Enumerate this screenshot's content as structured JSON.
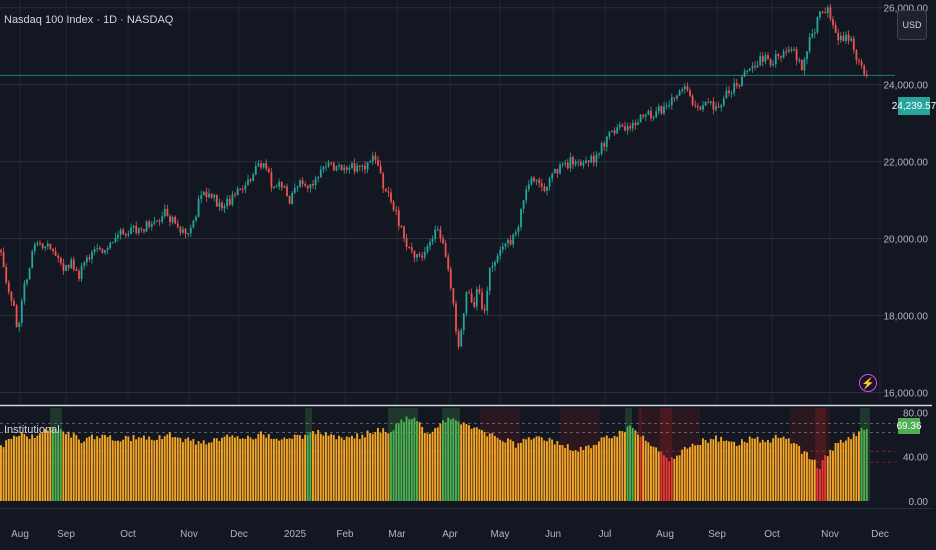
{
  "header": {
    "title": "Nasdaq 100 Index · 1D · NASDAQ"
  },
  "currency_button": {
    "label": "USD"
  },
  "last_price_label": "24,239.57",
  "indicator": {
    "title": "Institutional",
    "value_label": "69.36"
  },
  "colors": {
    "background": "#131722",
    "up": "#26a69a",
    "down": "#ef5350",
    "orange": "#f5a623",
    "green": "#4caf50",
    "red": "#e53935"
  },
  "icons": {
    "alert": "lightning-icon"
  },
  "chart_data": [
    {
      "type": "candlestick",
      "title": "Nasdaq 100 Index · 1D · NASDAQ",
      "x_ticks": [
        "Aug",
        "Sep",
        "Oct",
        "Nov",
        "Dec",
        "2025",
        "Feb",
        "Mar",
        "Apr",
        "May",
        "Jun",
        "Jul",
        "Aug",
        "Sep",
        "Oct",
        "Nov",
        "Dec"
      ],
      "y_ticks": [
        "16,000.00",
        "18,000.00",
        "20,000.00",
        "22,000.00",
        "24,000.00",
        "26,000.00"
      ],
      "ylim": [
        15700,
        26200
      ],
      "last_price": 24239.57,
      "close_path": [
        [
          0,
          19700
        ],
        [
          7,
          18600
        ],
        [
          13,
          18300
        ],
        [
          16,
          17900
        ],
        [
          18,
          17600
        ],
        [
          22,
          18400
        ],
        [
          28,
          19200
        ],
        [
          35,
          19800
        ],
        [
          45,
          19900
        ],
        [
          55,
          19600
        ],
        [
          63,
          19200
        ],
        [
          70,
          19400
        ],
        [
          78,
          19000
        ],
        [
          85,
          19500
        ],
        [
          95,
          19700
        ],
        [
          105,
          19600
        ],
        [
          115,
          20100
        ],
        [
          130,
          20200
        ],
        [
          145,
          20300
        ],
        [
          155,
          20400
        ],
        [
          165,
          20700
        ],
        [
          175,
          20400
        ],
        [
          185,
          20100
        ],
        [
          195,
          20500
        ],
        [
          200,
          21100
        ],
        [
          210,
          21200
        ],
        [
          220,
          20800
        ],
        [
          235,
          21100
        ],
        [
          245,
          21400
        ],
        [
          255,
          21800
        ],
        [
          262,
          22000
        ],
        [
          268,
          21900
        ],
        [
          272,
          21300
        ],
        [
          280,
          21500
        ],
        [
          290,
          21000
        ],
        [
          300,
          21600
        ],
        [
          310,
          21300
        ],
        [
          320,
          21700
        ],
        [
          330,
          21900
        ],
        [
          340,
          21800
        ],
        [
          350,
          21900
        ],
        [
          362,
          21800
        ],
        [
          372,
          22100
        ],
        [
          380,
          21700
        ],
        [
          385,
          21200
        ],
        [
          392,
          21000
        ],
        [
          400,
          20300
        ],
        [
          410,
          19600
        ],
        [
          420,
          19500
        ],
        [
          428,
          19700
        ],
        [
          437,
          20300
        ],
        [
          444,
          19700
        ],
        [
          450,
          18900
        ],
        [
          454,
          18100
        ],
        [
          458,
          17200
        ],
        [
          462,
          17700
        ],
        [
          467,
          18700
        ],
        [
          473,
          18200
        ],
        [
          478,
          18700
        ],
        [
          484,
          18100
        ],
        [
          490,
          19200
        ],
        [
          500,
          19600
        ],
        [
          510,
          19900
        ],
        [
          518,
          20200
        ],
        [
          523,
          21000
        ],
        [
          530,
          21500
        ],
        [
          545,
          21300
        ],
        [
          555,
          21700
        ],
        [
          570,
          22000
        ],
        [
          585,
          21900
        ],
        [
          595,
          22100
        ],
        [
          610,
          22700
        ],
        [
          625,
          22900
        ],
        [
          640,
          23100
        ],
        [
          655,
          23300
        ],
        [
          665,
          23400
        ],
        [
          675,
          23700
        ],
        [
          683,
          23900
        ],
        [
          690,
          23700
        ],
        [
          698,
          23300
        ],
        [
          705,
          23600
        ],
        [
          715,
          23400
        ],
        [
          725,
          23700
        ],
        [
          740,
          24100
        ],
        [
          750,
          24400
        ],
        [
          760,
          24700
        ],
        [
          772,
          24600
        ],
        [
          785,
          24900
        ],
        [
          795,
          24800
        ],
        [
          802,
          24400
        ],
        [
          808,
          25000
        ],
        [
          815,
          25500
        ],
        [
          822,
          25900
        ],
        [
          828,
          25900
        ],
        [
          835,
          25400
        ],
        [
          842,
          25100
        ],
        [
          848,
          25300
        ],
        [
          855,
          24800
        ],
        [
          862,
          24400
        ],
        [
          868,
          24100
        ]
      ]
    },
    {
      "type": "bar",
      "title": "Institutional",
      "y_ticks": [
        "0.00",
        "40.00",
        "80.00"
      ],
      "ylim": [
        0,
        84
      ],
      "reference_lines": [
        70,
        62,
        45,
        35
      ],
      "last_value": 69.36,
      "value_path": [
        [
          0,
          50
        ],
        [
          10,
          55
        ],
        [
          20,
          60
        ],
        [
          30,
          58
        ],
        [
          40,
          62
        ],
        [
          50,
          65
        ],
        [
          60,
          62
        ],
        [
          70,
          60
        ],
        [
          80,
          55
        ],
        [
          90,
          58
        ],
        [
          100,
          60
        ],
        [
          110,
          58
        ],
        [
          120,
          55
        ],
        [
          130,
          57
        ],
        [
          140,
          58
        ],
        [
          150,
          55
        ],
        [
          160,
          57
        ],
        [
          170,
          60
        ],
        [
          180,
          56
        ],
        [
          190,
          54
        ],
        [
          200,
          52
        ],
        [
          210,
          55
        ],
        [
          220,
          57
        ],
        [
          230,
          59
        ],
        [
          240,
          56
        ],
        [
          250,
          58
        ],
        [
          260,
          60
        ],
        [
          270,
          57
        ],
        [
          280,
          55
        ],
        [
          290,
          58
        ],
        [
          300,
          57
        ],
        [
          310,
          60
        ],
        [
          320,
          62
        ],
        [
          330,
          60
        ],
        [
          340,
          57
        ],
        [
          350,
          60
        ],
        [
          360,
          58
        ],
        [
          370,
          62
        ],
        [
          380,
          64
        ],
        [
          388,
          62
        ],
        [
          392,
          66
        ],
        [
          398,
          72
        ],
        [
          405,
          75
        ],
        [
          412,
          74
        ],
        [
          418,
          70
        ],
        [
          425,
          62
        ],
        [
          435,
          65
        ],
        [
          442,
          70
        ],
        [
          450,
          74
        ],
        [
          458,
          73
        ],
        [
          465,
          68
        ],
        [
          475,
          64
        ],
        [
          485,
          60
        ],
        [
          495,
          58
        ],
        [
          505,
          55
        ],
        [
          515,
          50
        ],
        [
          525,
          55
        ],
        [
          535,
          58
        ],
        [
          545,
          56
        ],
        [
          555,
          52
        ],
        [
          565,
          50
        ],
        [
          572,
          45
        ],
        [
          580,
          47
        ],
        [
          590,
          50
        ],
        [
          600,
          55
        ],
        [
          610,
          58
        ],
        [
          620,
          62
        ],
        [
          628,
          66
        ],
        [
          635,
          63
        ],
        [
          645,
          55
        ],
        [
          652,
          48
        ],
        [
          660,
          42
        ],
        [
          665,
          40
        ],
        [
          670,
          38
        ],
        [
          678,
          42
        ],
        [
          685,
          48
        ],
        [
          695,
          52
        ],
        [
          705,
          55
        ],
        [
          715,
          57
        ],
        [
          725,
          54
        ],
        [
          735,
          52
        ],
        [
          745,
          55
        ],
        [
          755,
          56
        ],
        [
          765,
          52
        ],
        [
          775,
          57
        ],
        [
          785,
          56
        ],
        [
          795,
          50
        ],
        [
          805,
          42
        ],
        [
          812,
          38
        ],
        [
          818,
          30
        ],
        [
          825,
          42
        ],
        [
          835,
          50
        ],
        [
          845,
          55
        ],
        [
          855,
          60
        ],
        [
          862,
          65
        ],
        [
          868,
          69
        ]
      ],
      "green_ranges": [
        [
          50,
          62
        ],
        [
          305,
          312
        ],
        [
          388,
          418
        ],
        [
          442,
          460
        ],
        [
          625,
          632
        ],
        [
          860,
          870
        ]
      ],
      "red_ranges": [
        [
          638,
          642
        ],
        [
          660,
          672
        ],
        [
          815,
          826
        ]
      ]
    }
  ]
}
